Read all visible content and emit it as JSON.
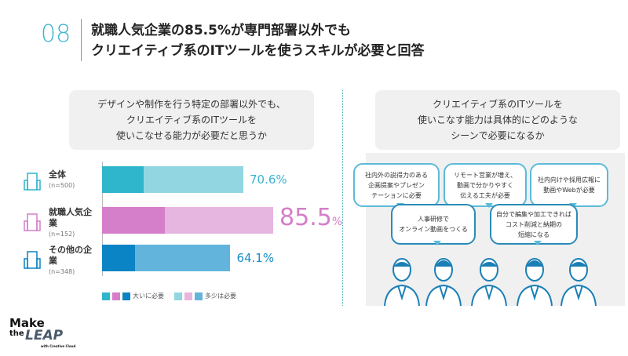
{
  "header": {
    "number": "08",
    "title_line1": "就職人気企業の85.5%が専門部署以外でも",
    "title_line2": "クリエイティブ系のITツールを使うスキルが必要と回答"
  },
  "left_question": {
    "line1": "デザインや制作を行う特定の部署以外でも、",
    "line2": "クリエイティブ系のITツールを",
    "line3": "使いこなせる能力が必要だと思うか"
  },
  "right_question": {
    "line1": "クリエイティブ系のITツールを",
    "line2": "使いこなす能力は具体的にどのような",
    "line3": "シーンで必要になるか"
  },
  "chart_data": {
    "type": "bar",
    "orientation": "horizontal",
    "stacked": true,
    "categories": [
      "全体",
      "就職人気企業",
      "その他の企業"
    ],
    "sample_sizes": [
      "(n=500)",
      "(n=152)",
      "(n=348)"
    ],
    "totals": [
      "70.6%",
      "85.5",
      "64.1%"
    ],
    "total_values": [
      70.6,
      85.5,
      64.1
    ],
    "series": [
      {
        "name": "大いに必要",
        "values": [
          20.8,
          31.4,
          16.5
        ]
      },
      {
        "name": "多少は必要",
        "values": [
          49.8,
          54.1,
          47.6
        ]
      }
    ],
    "colors": [
      [
        "#2fb5cc",
        "#92d6e2"
      ],
      [
        "#d57ec9",
        "#e6b5e0"
      ],
      [
        "#0a84c4",
        "#62b4dc"
      ]
    ],
    "pct_colors": [
      "#3bb3d0",
      "#d57ec9",
      "#1a8cc8"
    ],
    "percent_suffix": "%",
    "legend": [
      "大いに必要",
      "多少は必要"
    ],
    "xlim": [
      0,
      100
    ]
  },
  "bubbles": [
    {
      "lines": [
        "社内外の説得力のある",
        "企画提案やプレゼン",
        "テーションに必要"
      ]
    },
    {
      "lines": [
        "リモート営業が増え、",
        "動画で分かりやすく",
        "伝える工夫が必要"
      ]
    },
    {
      "lines": [
        "社内向けや採用広報に",
        "動画やWebが必要"
      ]
    },
    {
      "lines": [
        "人事研修で",
        "オンライン動画をつくる"
      ]
    },
    {
      "lines": [
        "自分で編集や加工できれば",
        "コスト削減と納期の",
        "短縮になる"
      ]
    }
  ],
  "logo": {
    "line1": "Make",
    "line2": "the",
    "line3": "LEAP",
    "sub": "with Creative Cloud"
  }
}
